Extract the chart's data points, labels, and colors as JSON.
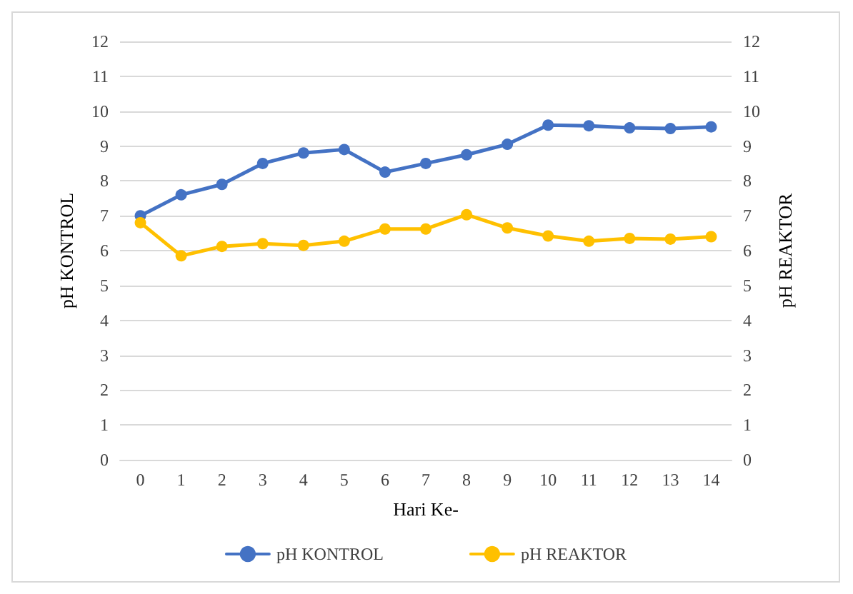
{
  "chart_data": {
    "type": "line",
    "xlabel": "Hari Ke-",
    "ylabel": "pH KONTROL",
    "y2label": "pH REAKTOR",
    "categories": [
      "0",
      "1",
      "2",
      "3",
      "4",
      "5",
      "6",
      "7",
      "8",
      "9",
      "10",
      "11",
      "12",
      "13",
      "14"
    ],
    "series": [
      {
        "name": "pH KONTROL",
        "color": "#4472c4",
        "values": [
          7.0,
          7.6,
          7.9,
          8.5,
          8.8,
          8.9,
          8.25,
          8.5,
          8.75,
          9.05,
          9.6,
          9.58,
          9.52,
          9.5,
          9.55
        ]
      },
      {
        "name": "pH REAKTOR",
        "color": "#ffc000",
        "values": [
          6.8,
          5.85,
          6.12,
          6.2,
          6.15,
          6.27,
          6.62,
          6.62,
          7.03,
          6.65,
          6.42,
          6.27,
          6.35,
          6.33,
          6.4
        ]
      }
    ],
    "ylim": [
      0,
      12
    ],
    "yticks": [
      0,
      1,
      2,
      3,
      4,
      5,
      6,
      7,
      8,
      9,
      10,
      11,
      12
    ],
    "y2lim": [
      0,
      12
    ],
    "y2ticks": [
      0,
      1,
      2,
      3,
      4,
      5,
      6,
      7,
      8,
      9,
      10,
      11,
      12
    ],
    "grid": "y",
    "legend": "bottom",
    "marker": "circle",
    "line_style": "solid"
  }
}
